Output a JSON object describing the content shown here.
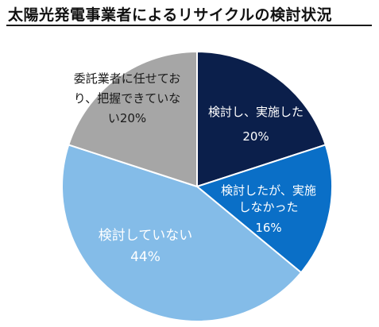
{
  "chart_data": {
    "type": "pie",
    "title": "太陽光発電事業者によるリサイクルの検討状況",
    "slices": [
      {
        "label_lines": [
          "検討し、実施した"
        ],
        "value": 20,
        "value_label": "20%",
        "color": "#0b1f4b",
        "text_color": "#ffffff"
      },
      {
        "label_lines": [
          "検討したが、実施",
          "しなかった"
        ],
        "value": 16,
        "value_label": "16%",
        "color": "#0a6fc7",
        "text_color": "#ffffff"
      },
      {
        "label_lines": [
          "検討していない"
        ],
        "value": 44,
        "value_label": "44%",
        "color": "#84bce8",
        "text_color": "#ffffff"
      },
      {
        "label_lines": [
          "委託業者に任せてお",
          "り、把握できていな"
        ],
        "value_suffix": "い",
        "value": 20,
        "value_label": "20%",
        "color": "#a6a6a6",
        "text_color": "#1a1a1a"
      }
    ]
  }
}
